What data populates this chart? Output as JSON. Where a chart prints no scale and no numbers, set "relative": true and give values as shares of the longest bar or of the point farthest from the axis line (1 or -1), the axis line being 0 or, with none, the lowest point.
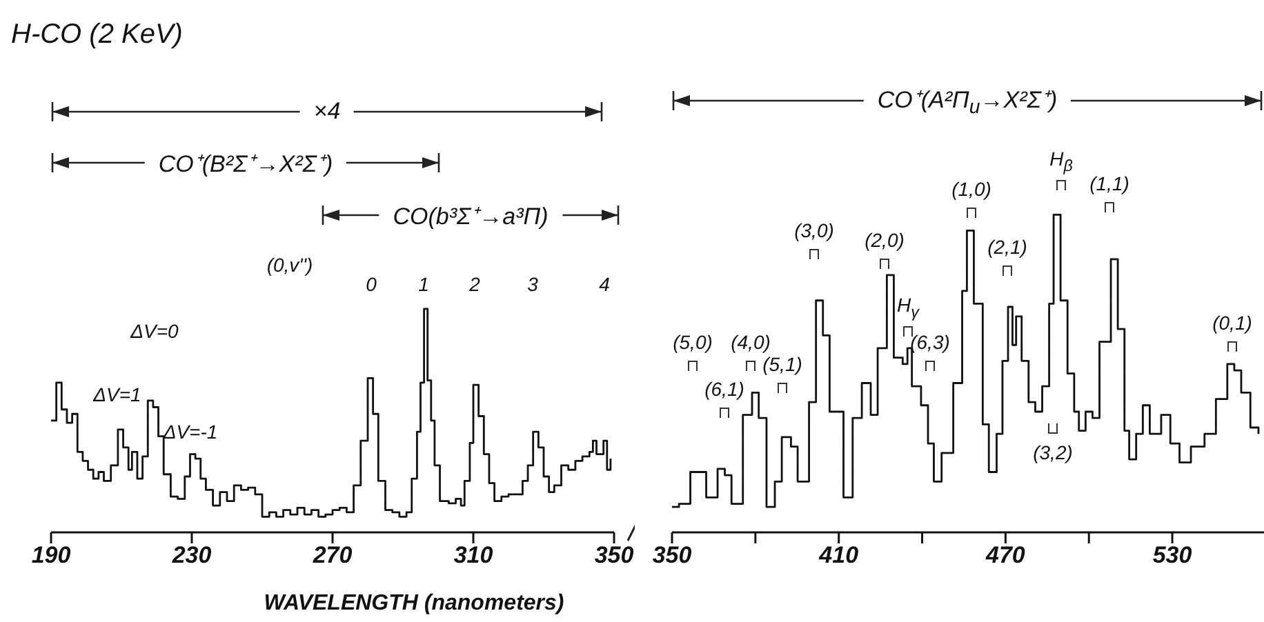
{
  "chart_data": [
    {
      "type": "step",
      "title": "H-CO (2 KeV)",
      "xlabel": "WAVELENGTH (nanometers)",
      "relative": true,
      "tick_labels": "x",
      "color": "#111111",
      "xlim": [
        190,
        350
      ],
      "xticks": [
        190,
        230,
        270,
        310,
        350
      ],
      "x": [
        190,
        191.5,
        193,
        194.5,
        196,
        197.5,
        199,
        200.5,
        202,
        203.5,
        205,
        207,
        209,
        210.5,
        212,
        213,
        214.5,
        216,
        217.5,
        219,
        220.5,
        222,
        224,
        226,
        228,
        229.5,
        231,
        232.5,
        234,
        236,
        238,
        240,
        242,
        244,
        246,
        248,
        250,
        252,
        254,
        256,
        258,
        260,
        262,
        264,
        266,
        268,
        270,
        272,
        274,
        276,
        278,
        280,
        281.5,
        283,
        285,
        287,
        289,
        291,
        292.5,
        294,
        295,
        296,
        297,
        298,
        299,
        300.5,
        303,
        305,
        306.5,
        307.5,
        309,
        310,
        311.5,
        313,
        314.5,
        316,
        318,
        320,
        322,
        324,
        325.5,
        327,
        328.5,
        330,
        331.5,
        333,
        335,
        337,
        339,
        341,
        343,
        344,
        345,
        347,
        348,
        349
      ],
      "values": [
        0.5,
        0.67,
        0.55,
        0.49,
        0.53,
        0.36,
        0.32,
        0.28,
        0.24,
        0.27,
        0.23,
        0.3,
        0.46,
        0.38,
        0.28,
        0.36,
        0.24,
        0.34,
        0.59,
        0.56,
        0.43,
        0.26,
        0.16,
        0.15,
        0.25,
        0.35,
        0.33,
        0.24,
        0.19,
        0.12,
        0.18,
        0.14,
        0.21,
        0.19,
        0.2,
        0.17,
        0.07,
        0.09,
        0.07,
        0.1,
        0.08,
        0.11,
        0.08,
        0.1,
        0.07,
        0.08,
        0.1,
        0.11,
        0.09,
        0.21,
        0.41,
        0.69,
        0.53,
        0.23,
        0.1,
        0.09,
        0.07,
        0.09,
        0.24,
        0.45,
        0.67,
        1.0,
        0.68,
        0.5,
        0.3,
        0.14,
        0.13,
        0.15,
        0.12,
        0.23,
        0.4,
        0.66,
        0.52,
        0.35,
        0.22,
        0.14,
        0.16,
        0.17,
        0.17,
        0.23,
        0.3,
        0.45,
        0.38,
        0.25,
        0.18,
        0.21,
        0.3,
        0.28,
        0.32,
        0.34,
        0.36,
        0.41,
        0.35,
        0.41,
        0.28,
        0.33
      ],
      "annotations": [
        "×4",
        "CO⁺(B²Σ⁺→X²Σ⁺)",
        "CO(b³Σ⁺→a³Π)",
        "ΔV=1",
        "ΔV=0",
        "ΔV=-1",
        "(0,v'')",
        "0",
        "1",
        "2",
        "3",
        "4"
      ]
    },
    {
      "type": "step",
      "relative": true,
      "tick_labels": "x",
      "color": "#111111",
      "xlim": [
        350,
        563
      ],
      "xticks": [
        350,
        {
          "value": 380,
          "label": null
        },
        410,
        {
          "value": 440,
          "label": null
        },
        470,
        {
          "value": 500,
          "label": null
        },
        530
      ],
      "x": [
        350,
        352.5,
        356.6,
        358.2,
        362.3,
        366.4,
        369,
        371.4,
        375.5,
        378.8,
        381.2,
        384,
        387,
        389.5,
        392.8,
        395.2,
        399.3,
        401.8,
        404.3,
        406.7,
        411.7,
        415,
        418.3,
        421.5,
        424,
        427.3,
        429.8,
        433,
        434.7,
        436.3,
        439.6,
        442.1,
        444.2,
        447,
        451.2,
        454.4,
        456.1,
        458.6,
        461.8,
        464,
        466.8,
        468.9,
        470.9,
        472.5,
        473.8,
        475.8,
        478.3,
        480.7,
        483.2,
        485.7,
        487.3,
        489.8,
        492.3,
        494.7,
        496.4,
        498.8,
        501.3,
        503.8,
        507.9,
        510.4,
        512.8,
        514.5,
        517,
        519.4,
        521.9,
        526,
        529.3,
        532.6,
        536.7,
        541.6,
        545.7,
        549.8,
        552.3,
        554.8,
        558.1,
        561
      ],
      "values": [
        0.08,
        0.09,
        0.19,
        0.19,
        0.11,
        0.2,
        0.18,
        0.09,
        0.37,
        0.44,
        0.36,
        0.08,
        0.16,
        0.3,
        0.27,
        0.16,
        0.41,
        0.73,
        0.62,
        0.38,
        0.11,
        0.36,
        0.47,
        0.37,
        0.58,
        0.81,
        0.55,
        0.53,
        0.58,
        0.46,
        0.4,
        0.28,
        0.16,
        0.25,
        0.47,
        0.76,
        0.95,
        0.72,
        0.34,
        0.19,
        0.31,
        0.54,
        0.71,
        0.59,
        0.68,
        0.54,
        0.41,
        0.38,
        0.46,
        0.72,
        1.0,
        0.73,
        0.5,
        0.38,
        0.32,
        0.38,
        0.36,
        0.6,
        0.86,
        0.64,
        0.32,
        0.23,
        0.31,
        0.4,
        0.31,
        0.37,
        0.28,
        0.22,
        0.27,
        0.31,
        0.42,
        0.53,
        0.51,
        0.44,
        0.33,
        0.31
      ],
      "annotations": [
        "CO⁺(A²Π$_{u}$→X²Σ⁺)",
        "(5,0)",
        "(6,1)",
        "(4,0)",
        "(5,1)",
        "(3,0)",
        "(2,0)",
        "H$_{γ}$",
        "(6,3)",
        "(1,0)",
        "(2,1)",
        "H$_{β}$",
        "(3,2)",
        "(1,1)",
        "(0,1)"
      ]
    }
  ]
}
